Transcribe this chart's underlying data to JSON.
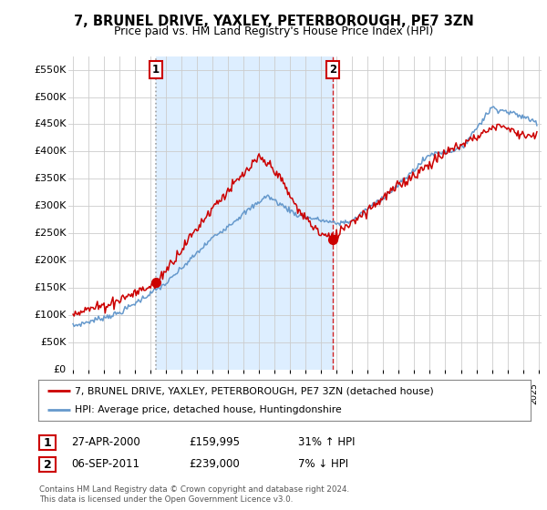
{
  "title": "7, BRUNEL DRIVE, YAXLEY, PETERBOROUGH, PE7 3ZN",
  "subtitle": "Price paid vs. HM Land Registry's House Price Index (HPI)",
  "ylim": [
    0,
    575000
  ],
  "yticks": [
    0,
    50000,
    100000,
    150000,
    200000,
    250000,
    300000,
    350000,
    400000,
    450000,
    500000,
    550000
  ],
  "ytick_labels": [
    "£0",
    "£50K",
    "£100K",
    "£150K",
    "£200K",
    "£250K",
    "£300K",
    "£350K",
    "£400K",
    "£450K",
    "£500K",
    "£550K"
  ],
  "legend_label_red": "7, BRUNEL DRIVE, YAXLEY, PETERBOROUGH, PE7 3ZN (detached house)",
  "legend_label_blue": "HPI: Average price, detached house, Huntingdonshire",
  "annotation1": {
    "num": "1",
    "date": "27-APR-2000",
    "price": "£159,995",
    "pct": "31% ↑ HPI"
  },
  "annotation2": {
    "num": "2",
    "date": "06-SEP-2011",
    "price": "£239,000",
    "pct": "7% ↓ HPI"
  },
  "footer": "Contains HM Land Registry data © Crown copyright and database right 2024.\nThis data is licensed under the Open Government Licence v3.0.",
  "red_color": "#cc0000",
  "blue_color": "#6699cc",
  "shade_color": "#ddeeff",
  "vline1_color": "#999999",
  "vline2_color": "#cc0000",
  "dot1_x": 2000.32,
  "dot1_y": 159995,
  "dot2_x": 2011.75,
  "dot2_y": 239000,
  "background_color": "#ffffff",
  "grid_color": "#cccccc",
  "xmin": 1995.0,
  "xmax": 2025.0
}
